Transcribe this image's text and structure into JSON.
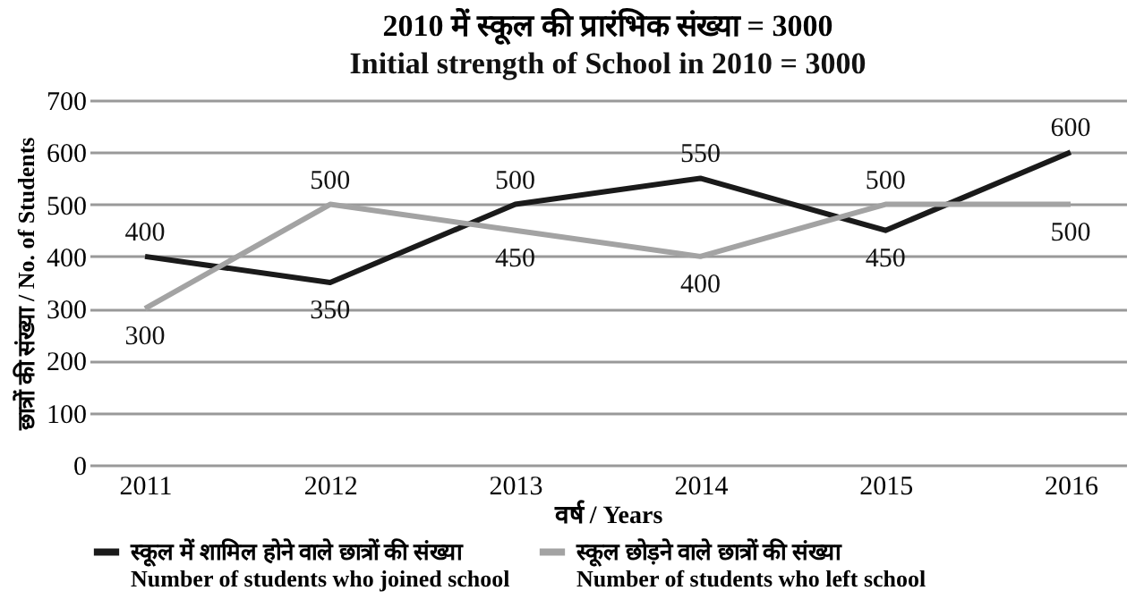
{
  "chart_data": {
    "type": "line",
    "title": "2010 में स्कूल की प्रारंभिक संख्या = 3000",
    "subtitle": "Initial strength of School in 2010 = 3000",
    "xlabel": "वर्ष / Years",
    "ylabel": "छात्रों की संख्या / No. of Students",
    "categories": [
      "2011",
      "2012",
      "2013",
      "2014",
      "2015",
      "2016"
    ],
    "series": [
      {
        "name": "स्कूल में शामिल होने वाले छात्रों की संख्या\nNumber of students who joined school",
        "color": "#1a1a1a",
        "values": [
          400,
          350,
          500,
          550,
          450,
          600
        ]
      },
      {
        "name": "स्कूल छोड़ने वाले छात्रों की संख्या\nNumber of students who left school",
        "color": "#a3a3a3",
        "values": [
          300,
          500,
          450,
          400,
          500,
          500
        ]
      }
    ],
    "ylim": [
      0,
      700
    ],
    "yticks": [
      0,
      100,
      200,
      300,
      400,
      500,
      600,
      700
    ],
    "grid": "y",
    "legend": "bottom",
    "data_labels": true,
    "marker": "none",
    "line_style": "solid"
  }
}
